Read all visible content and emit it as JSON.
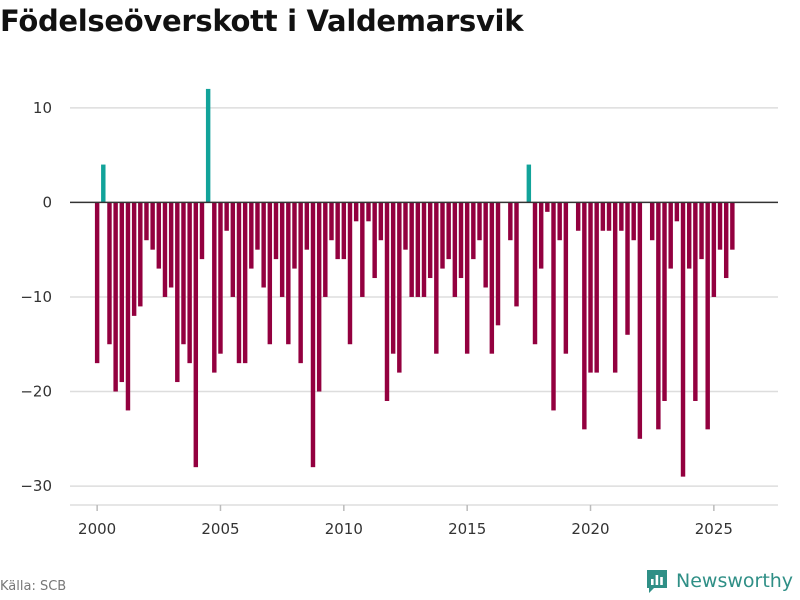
{
  "title": "Födelseöverskott i Valdemarsvik",
  "source": "Källa: SCB",
  "brand": {
    "name": "Newsworthy",
    "icon": "bar-chart-logo-icon",
    "color": "#2f8f86"
  },
  "colors": {
    "positive": "#12a39a",
    "negative": "#93003f",
    "grid": "#dddddd",
    "zero": "#333333"
  },
  "chart_data": {
    "type": "bar",
    "title": "Födelseöverskott i Valdemarsvik",
    "xlabel": "",
    "ylabel": "",
    "x_start": 2000,
    "x_step": 0.25,
    "xlim": [
      1998.9,
      2027.6
    ],
    "ylim": [
      -32,
      14
    ],
    "yticks": [
      10,
      0,
      -10,
      -20,
      -30
    ],
    "ytick_labels": [
      "10",
      "0",
      "−10",
      "−20",
      "−30"
    ],
    "xticks": [
      2000,
      2005,
      2010,
      2015,
      2020,
      2025
    ],
    "xtick_labels": [
      "2000",
      "2005",
      "2010",
      "2015",
      "2020",
      "2025"
    ],
    "grid": true,
    "values": [
      -17,
      4,
      -15,
      -20,
      -19,
      -22,
      -12,
      -11,
      -4,
      -5,
      -7,
      -10,
      -9,
      -19,
      -15,
      -17,
      -28,
      -6,
      12,
      -18,
      -16,
      -3,
      -10,
      -17,
      -17,
      -7,
      -5,
      -9,
      -15,
      -6,
      -10,
      -15,
      -7,
      -17,
      -5,
      -28,
      -20,
      -10,
      -4,
      -6,
      -6,
      -15,
      -2,
      -10,
      -2,
      -8,
      -4,
      -21,
      -16,
      -18,
      -5,
      -10,
      -10,
      -10,
      -8,
      -16,
      -7,
      -6,
      -10,
      -8,
      -16,
      -6,
      -4,
      -9,
      -16,
      -13,
      0,
      -4,
      -11,
      0,
      4,
      -15,
      -7,
      -1,
      -22,
      -4,
      -16,
      0,
      -3,
      -24,
      -18,
      -18,
      -3,
      -3,
      -18,
      -3,
      -14,
      -4,
      -25,
      0,
      -4,
      -24,
      -21,
      -7,
      -2,
      -29,
      -7,
      -21,
      -6,
      -24,
      -10,
      -5,
      -8,
      -5
    ]
  }
}
